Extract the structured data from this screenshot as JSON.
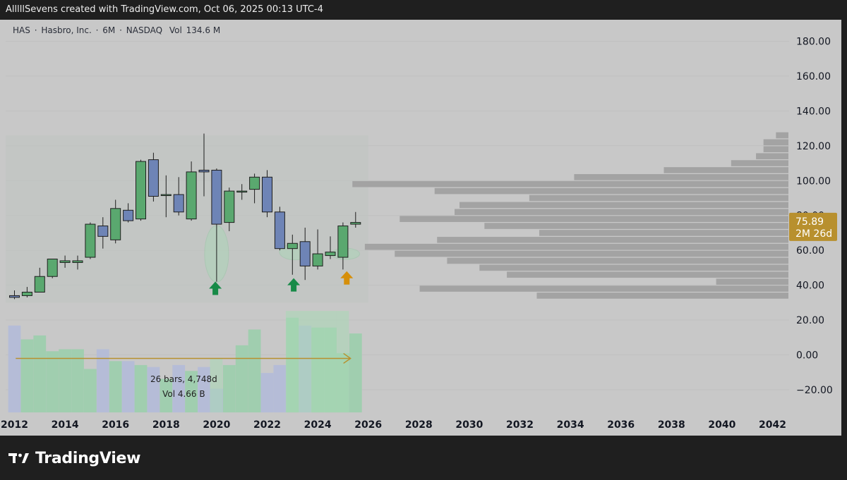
{
  "header": {
    "attribution": "AlllllSevens created with TradingView.com, Oct 06, 2025 00:13 UTC-4"
  },
  "legend": {
    "symbol": "HAS",
    "sep1": "·",
    "name": "Hasbro, Inc.",
    "sep2": "·",
    "interval": "6M",
    "sep3": "·",
    "exchange": "NASDAQ",
    "volume_label": "Vol",
    "volume_value": "134.6 M"
  },
  "price_axis": {
    "ticks": [
      "180.00",
      "160.00",
      "140.00",
      "120.00",
      "100.00",
      "80.00",
      "60.00",
      "40.00",
      "20.00",
      "0.00",
      "−20.00"
    ]
  },
  "time_axis": {
    "ticks": [
      "2012",
      "2014",
      "2016",
      "2018",
      "2020",
      "2022",
      "2024",
      "2026",
      "2028",
      "2030",
      "2032",
      "2034",
      "2036",
      "2038",
      "2040",
      "2042"
    ]
  },
  "last_price": {
    "price": "75.89",
    "countdown": "2M 26d",
    "color": "#b8902e"
  },
  "measure": {
    "line1": "26 bars, 4,748d",
    "line2": "Vol 4.66 B"
  },
  "branding": {
    "name": "TradingView"
  },
  "colors": {
    "up": "#5aa86f",
    "down": "#6e84b6",
    "volume_up": "#9ecfae",
    "volume_down": "#b4bcd8",
    "profile": "#a3a3a3",
    "arrow_green": "#178a47",
    "arrow_orange": "#d68f0a",
    "measure": "#b8902e"
  },
  "chart_data": {
    "type": "candlestick",
    "interval": "6M",
    "ylim": [
      -30,
      190
    ],
    "xlim": [
      2012,
      2043.4
    ],
    "candles": [
      {
        "t": "2012-H1",
        "open": 34,
        "high": 37,
        "low": 32,
        "close": 33
      },
      {
        "t": "2012-H2",
        "open": 34,
        "high": 39,
        "low": 33,
        "close": 36
      },
      {
        "t": "2013-H1",
        "open": 36,
        "high": 50,
        "low": 36,
        "close": 45
      },
      {
        "t": "2013-H2",
        "open": 45,
        "high": 55,
        "low": 44,
        "close": 55
      },
      {
        "t": "2014-H1",
        "open": 53,
        "high": 57,
        "low": 50,
        "close": 54
      },
      {
        "t": "2014-H2",
        "open": 53,
        "high": 57,
        "low": 49,
        "close": 54
      },
      {
        "t": "2015-H1",
        "open": 56,
        "high": 76,
        "low": 55,
        "close": 75
      },
      {
        "t": "2015-H2",
        "open": 74,
        "high": 79,
        "low": 61,
        "close": 68
      },
      {
        "t": "2016-H1",
        "open": 66,
        "high": 89,
        "low": 64,
        "close": 84
      },
      {
        "t": "2016-H2",
        "open": 83,
        "high": 87,
        "low": 76,
        "close": 77
      },
      {
        "t": "2017-H1",
        "open": 78,
        "high": 112,
        "low": 77,
        "close": 111
      },
      {
        "t": "2017-H2",
        "open": 112,
        "high": 116,
        "low": 88,
        "close": 91
      },
      {
        "t": "2018-H1",
        "open": 92,
        "high": 103,
        "low": 79,
        "close": 92
      },
      {
        "t": "2018-H2",
        "open": 92,
        "high": 102,
        "low": 80,
        "close": 82
      },
      {
        "t": "2019-H1",
        "open": 78,
        "high": 111,
        "low": 77,
        "close": 105
      },
      {
        "t": "2019-H2",
        "open": 106,
        "high": 127,
        "low": 91,
        "close": 105
      },
      {
        "t": "2020-H1",
        "open": 106,
        "high": 107,
        "low": 42,
        "close": 75
      },
      {
        "t": "2020-H2",
        "open": 76,
        "high": 96,
        "low": 71,
        "close": 94
      },
      {
        "t": "2021-H1",
        "open": 94,
        "high": 98,
        "low": 89,
        "close": 94
      },
      {
        "t": "2021-H2",
        "open": 95,
        "high": 104,
        "low": 87,
        "close": 102
      },
      {
        "t": "2022-H1",
        "open": 102,
        "high": 106,
        "low": 79,
        "close": 82
      },
      {
        "t": "2022-H2",
        "open": 82,
        "high": 85,
        "low": 60,
        "close": 61
      },
      {
        "t": "2023-H1",
        "open": 61,
        "high": 69,
        "low": 46,
        "close": 64
      },
      {
        "t": "2023-H2",
        "open": 65,
        "high": 73,
        "low": 43,
        "close": 51
      },
      {
        "t": "2024-H1",
        "open": 51,
        "high": 72,
        "low": 49,
        "close": 58
      },
      {
        "t": "2024-H2",
        "open": 57,
        "high": 68,
        "low": 55,
        "close": 59
      },
      {
        "t": "2025-H1",
        "open": 56,
        "high": 76,
        "low": 49,
        "close": 74
      },
      {
        "t": "2025-H2",
        "open": 75,
        "high": 82,
        "low": 73,
        "close": 76
      }
    ],
    "volume_relative": [
      0.44,
      0.37,
      0.39,
      0.31,
      0.32,
      0.32,
      0.22,
      0.32,
      0.26,
      0.26,
      0.24,
      0.23,
      0.17,
      0.24,
      0.21,
      0.23,
      0.12,
      0.24,
      0.34,
      0.42,
      0.2,
      0.24,
      0.48,
      0.44,
      0.43,
      0.43,
      0.3,
      0.4
    ],
    "volume_profile": [
      {
        "price": 126,
        "length": 0.5
      },
      {
        "price": 122,
        "length": 1.0
      },
      {
        "price": 118,
        "length": 1.0
      },
      {
        "price": 114,
        "length": 1.3
      },
      {
        "price": 110,
        "length": 2.3
      },
      {
        "price": 106,
        "length": 5.0
      },
      {
        "price": 102,
        "length": 8.6
      },
      {
        "price": 98,
        "length": 17.5
      },
      {
        "price": 94,
        "length": 14.2
      },
      {
        "price": 90,
        "length": 10.4
      },
      {
        "price": 86,
        "length": 13.2
      },
      {
        "price": 82,
        "length": 13.4
      },
      {
        "price": 78,
        "length": 15.6
      },
      {
        "price": 74,
        "length": 12.2
      },
      {
        "price": 70,
        "length": 10.0
      },
      {
        "price": 66,
        "length": 14.1
      },
      {
        "price": 62,
        "length": 17.0
      },
      {
        "price": 58,
        "length": 15.8
      },
      {
        "price": 54,
        "length": 13.7
      },
      {
        "price": 50,
        "length": 12.4
      },
      {
        "price": 46,
        "length": 11.3
      },
      {
        "price": 42,
        "length": 2.9
      },
      {
        "price": 38,
        "length": 14.8
      },
      {
        "price": 34,
        "length": 10.1
      }
    ],
    "annotations": [
      {
        "type": "arrow-up",
        "date": 2019.95,
        "price": 38,
        "color": "green"
      },
      {
        "type": "arrow-up",
        "date": 2023.05,
        "price": 40,
        "color": "green"
      },
      {
        "type": "arrow-up",
        "date": 2025.15,
        "price": 44,
        "color": "orange"
      }
    ]
  }
}
